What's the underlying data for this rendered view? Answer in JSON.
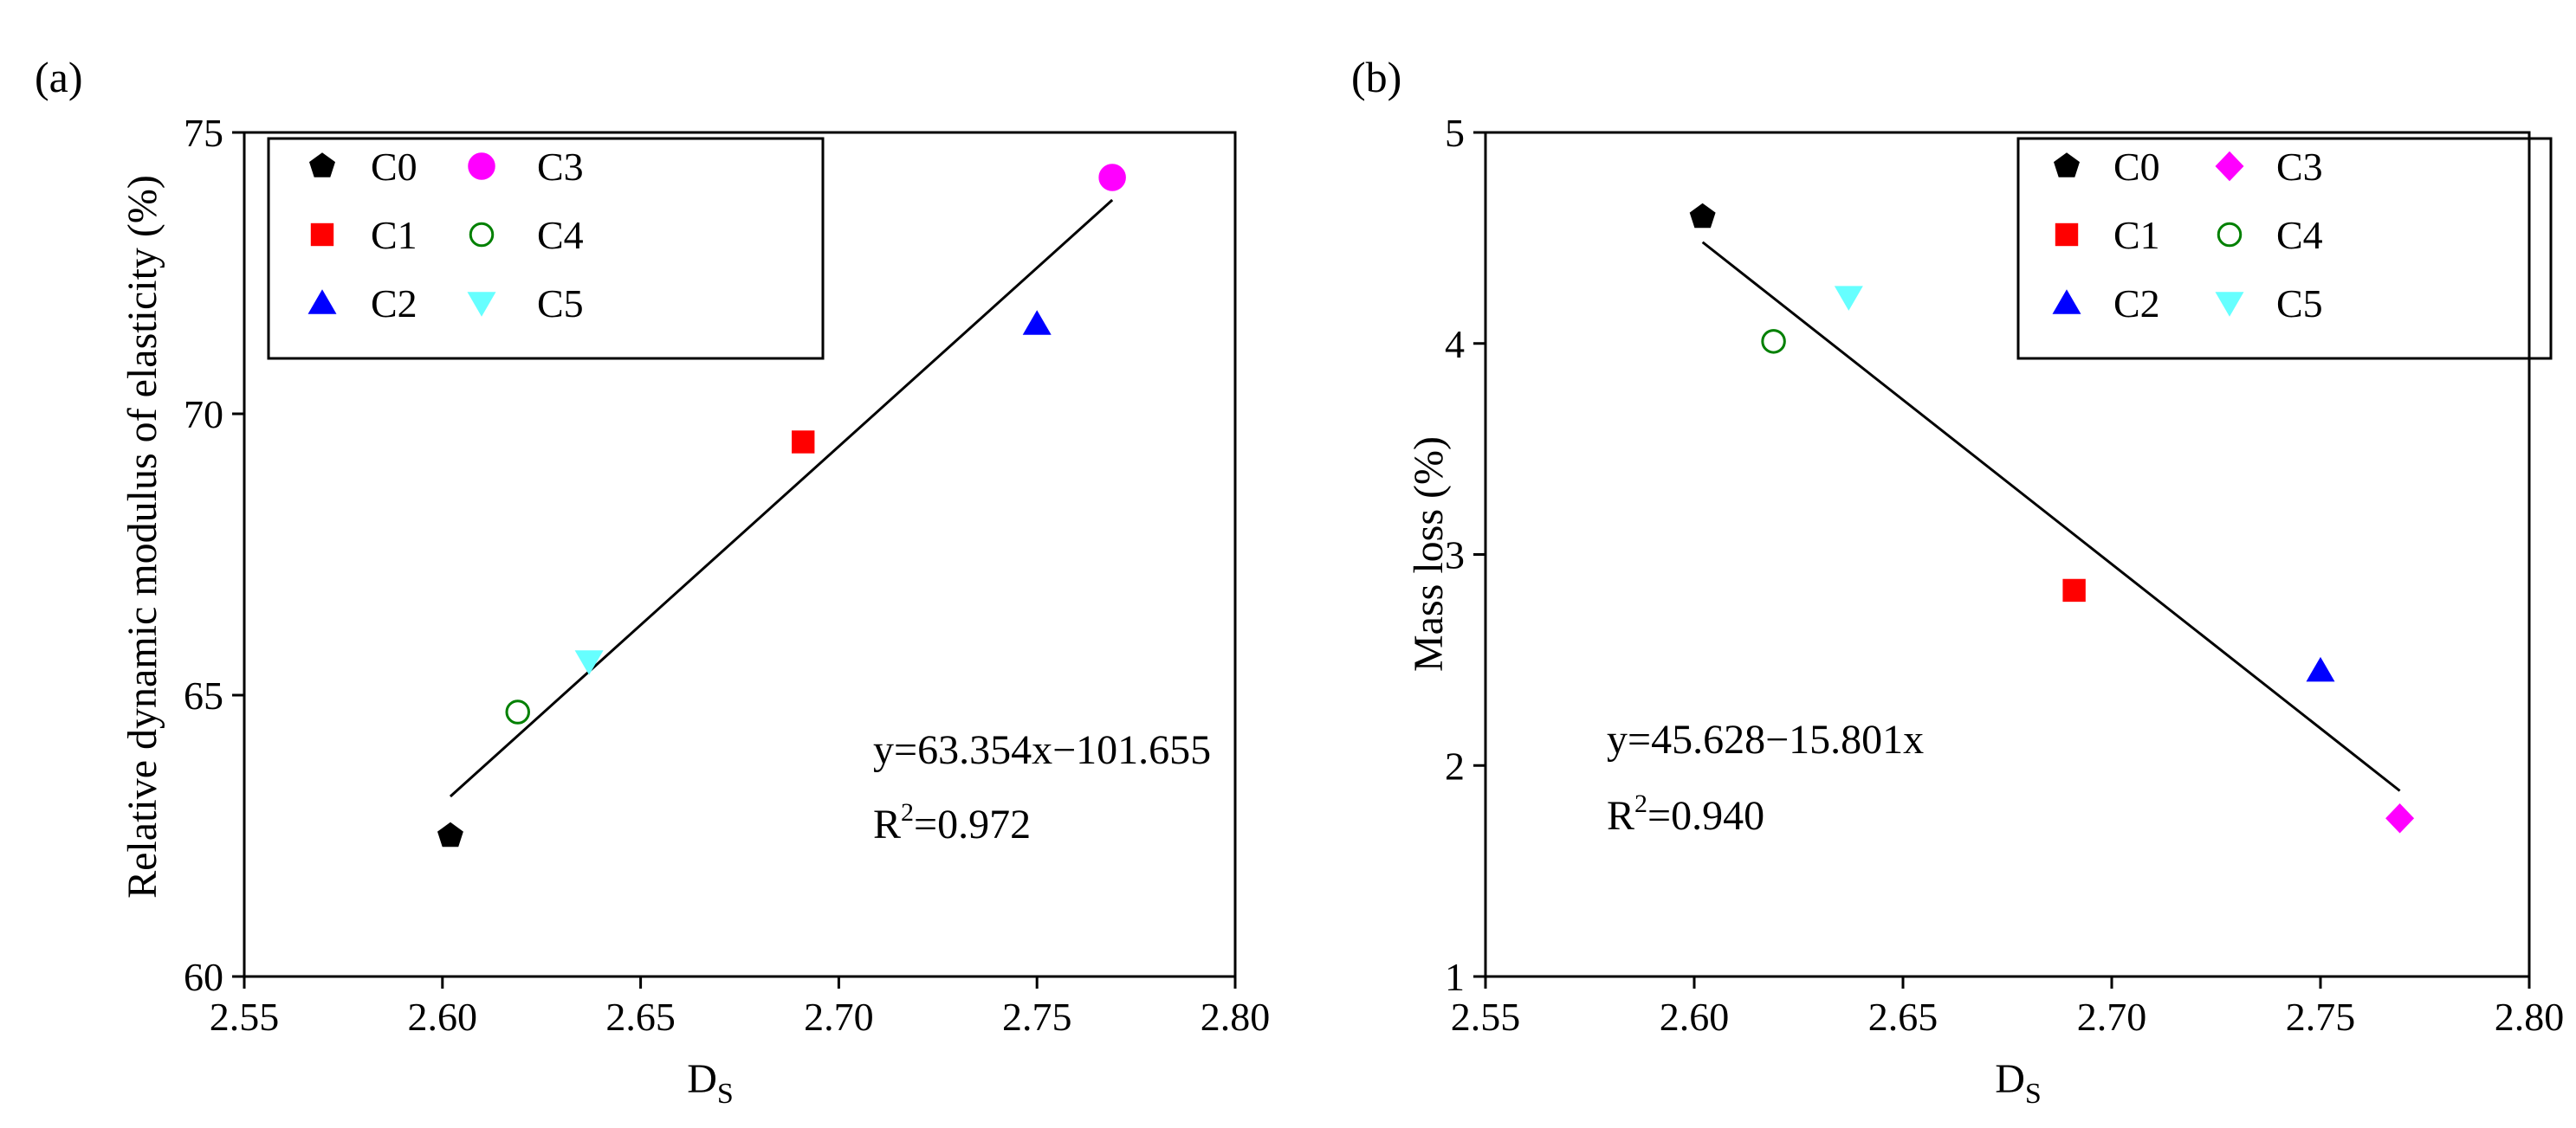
{
  "chart_data": [
    {
      "id": "a",
      "type": "scatter",
      "panel_label": "(a)",
      "xlabel": "D",
      "xlabel_sub": "S",
      "ylabel": "Relative dynamic modulus of elasticity (%)",
      "xlim": [
        2.55,
        2.8
      ],
      "ylim": [
        60,
        75
      ],
      "xticks": [
        2.55,
        2.6,
        2.65,
        2.7,
        2.75,
        2.8
      ],
      "xtick_labels": [
        "2.55",
        "2.60",
        "2.65",
        "2.70",
        "2.75",
        "2.80"
      ],
      "yticks": [
        60,
        65,
        70,
        75
      ],
      "ytick_labels": [
        "60",
        "65",
        "70",
        "75"
      ],
      "legend_position": "top-left",
      "series": [
        {
          "name": "C0",
          "marker": "pentagon",
          "filled": true,
          "color": "#000000",
          "x": 2.602,
          "y": 62.5
        },
        {
          "name": "C1",
          "marker": "square",
          "filled": true,
          "color": "#ff0000",
          "x": 2.691,
          "y": 69.5
        },
        {
          "name": "C2",
          "marker": "triangle-up",
          "filled": true,
          "color": "#0000ff",
          "x": 2.75,
          "y": 71.6
        },
        {
          "name": "C3",
          "marker": "circle",
          "filled": true,
          "color": "#ff00ff",
          "x": 2.769,
          "y": 74.2
        },
        {
          "name": "C4",
          "marker": "circle",
          "filled": false,
          "color": "#008000",
          "x": 2.619,
          "y": 64.7
        },
        {
          "name": "C5",
          "marker": "triangle-down",
          "filled": true,
          "color": "#66ffff",
          "x": 2.637,
          "y": 65.6
        }
      ],
      "fit_line": {
        "x": [
          2.602,
          2.769
        ],
        "y": [
          63.2,
          73.8
        ]
      },
      "equation": "y=63.354x−101.655",
      "r2_prefix": "R",
      "r2_sup": "2",
      "r2_value": "=0.972"
    },
    {
      "id": "b",
      "type": "scatter",
      "panel_label": "(b)",
      "xlabel": "D",
      "xlabel_sub": "S",
      "ylabel": "Mass loss (%)",
      "xlim": [
        2.55,
        2.8
      ],
      "ylim": [
        1,
        5
      ],
      "xticks": [
        2.55,
        2.6,
        2.65,
        2.7,
        2.75,
        2.8
      ],
      "xtick_labels": [
        "2.55",
        "2.60",
        "2.65",
        "2.70",
        "2.75",
        "2.80"
      ],
      "yticks": [
        1,
        2,
        3,
        4,
        5
      ],
      "ytick_labels": [
        "1",
        "2",
        "3",
        "4",
        "5"
      ],
      "legend_position": "top-right",
      "series": [
        {
          "name": "C0",
          "marker": "pentagon",
          "filled": true,
          "color": "#000000",
          "x": 2.602,
          "y": 4.6
        },
        {
          "name": "C1",
          "marker": "square",
          "filled": true,
          "color": "#ff0000",
          "x": 2.691,
          "y": 2.83
        },
        {
          "name": "C2",
          "marker": "triangle-up",
          "filled": true,
          "color": "#0000ff",
          "x": 2.75,
          "y": 2.45
        },
        {
          "name": "C3",
          "marker": "diamond",
          "filled": true,
          "color": "#ff00ff",
          "x": 2.769,
          "y": 1.75
        },
        {
          "name": "C4",
          "marker": "circle",
          "filled": false,
          "color": "#008000",
          "x": 2.619,
          "y": 4.01
        },
        {
          "name": "C5",
          "marker": "triangle-down",
          "filled": true,
          "color": "#66ffff",
          "x": 2.637,
          "y": 4.22
        }
      ],
      "fit_line": {
        "x": [
          2.602,
          2.769
        ],
        "y": [
          4.48,
          1.88
        ]
      },
      "equation": "y=45.628−15.801x",
      "r2_prefix": "R",
      "r2_sup": "2",
      "r2_value": "=0.940"
    }
  ]
}
